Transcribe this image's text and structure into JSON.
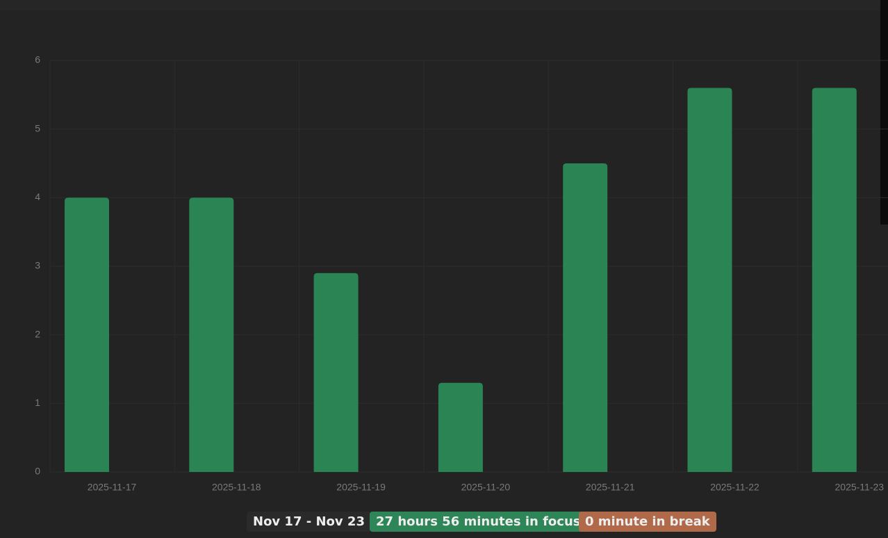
{
  "chart_data": {
    "type": "bar",
    "categories": [
      "2025-11-17",
      "2025-11-18",
      "2025-11-19",
      "2025-11-20",
      "2025-11-21",
      "2025-11-22",
      "2025-11-23"
    ],
    "values": [
      4.0,
      4.0,
      2.9,
      1.3,
      4.5,
      5.6,
      5.6
    ],
    "color": "#2b8454",
    "ylim": [
      0,
      6
    ],
    "yticks": [
      0,
      1,
      2,
      3,
      4,
      5,
      6
    ],
    "grid": true
  },
  "summary": {
    "range": "Nov 17 - Nov 23",
    "focus": "27 hours 56 minutes in focus",
    "break": "0 minute in break"
  }
}
